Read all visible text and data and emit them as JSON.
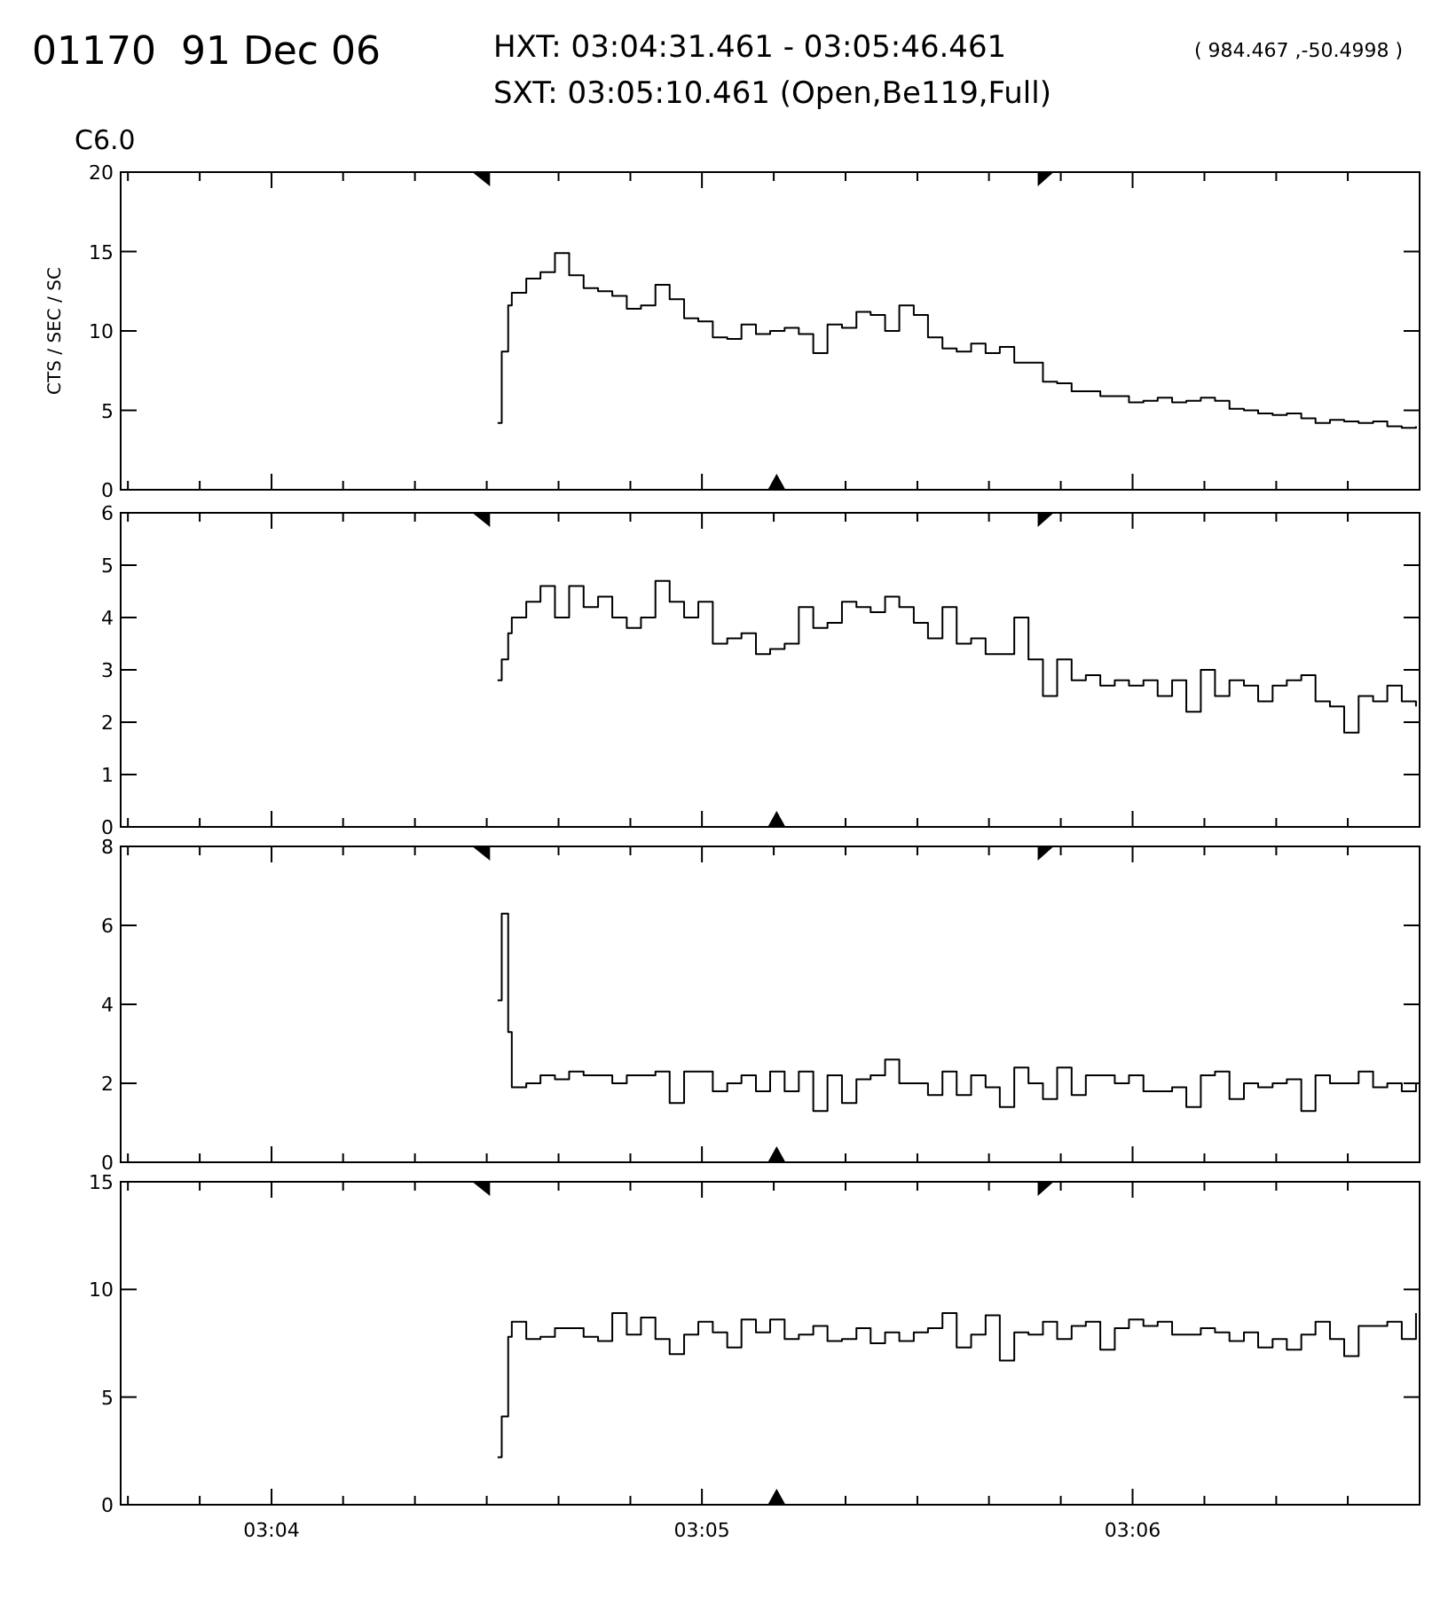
{
  "chart_data": [
    {
      "type": "step",
      "title": "01170  91 Dec 06",
      "annotations": [
        "HXT: 03:04:31.461 - 03:05:46.461",
        "( 984.467 ,-50.4998 )",
        "SXT: 03:05:10.461 (Open,Be119,Full)",
        "C6.0"
      ],
      "ylabel": "CTS / SEC / SC",
      "color": "#000000",
      "tick_labels": "y",
      "x": [
        3.07542,
        3.07558,
        3.07583,
        3.07597,
        3.07653,
        3.07708,
        3.07764,
        3.07819,
        3.07875,
        3.07931,
        3.07986,
        3.08042,
        3.08097,
        3.08153,
        3.08208,
        3.08264,
        3.08319,
        3.08375,
        3.08431,
        3.08486,
        3.08542,
        3.08597,
        3.08653,
        3.08708,
        3.08764,
        3.08819,
        3.08875,
        3.08931,
        3.08986,
        3.09042,
        3.09097,
        3.09153,
        3.09208,
        3.09264,
        3.09319,
        3.09375,
        3.09431,
        3.09486,
        3.09542,
        3.09597,
        3.09653,
        3.09708,
        3.09764,
        3.09819,
        3.09875,
        3.09931,
        3.09986,
        3.10042,
        3.10097,
        3.10153,
        3.10208,
        3.10264,
        3.10319,
        3.10375,
        3.10431,
        3.10486,
        3.10542,
        3.10597,
        3.10653,
        3.10708,
        3.10764,
        3.10819,
        3.10875,
        3.10931,
        3.10986,
        3.11042,
        3.11097
      ],
      "values": [
        4.2,
        8.7,
        11.6,
        12.4,
        13.3,
        13.7,
        14.9,
        13.5,
        12.7,
        12.5,
        12.2,
        11.4,
        11.6,
        12.9,
        12.0,
        10.8,
        10.6,
        9.6,
        9.5,
        10.4,
        9.8,
        10.0,
        10.2,
        9.8,
        8.6,
        10.4,
        10.2,
        11.2,
        11.0,
        10.0,
        11.6,
        11.0,
        9.6,
        8.9,
        8.7,
        9.2,
        8.6,
        9.0,
        8.0,
        8.0,
        6.8,
        6.7,
        6.2,
        6.2,
        5.9,
        5.9,
        5.5,
        5.6,
        5.8,
        5.5,
        5.6,
        5.8,
        5.6,
        5.1,
        5.0,
        4.8,
        4.7,
        4.8,
        4.5,
        4.2,
        4.4,
        4.3,
        4.2,
        4.3,
        4.0,
        3.9,
        4.0
      ],
      "xlim": [
        3.06083,
        3.11111
      ],
      "ylim": [
        0,
        20
      ],
      "yticks": [
        0,
        5,
        10,
        15,
        20
      ]
    },
    {
      "type": "step",
      "color": "#000000",
      "tick_labels": "y",
      "x": [
        3.07542,
        3.07558,
        3.07583,
        3.07597,
        3.07653,
        3.07708,
        3.07764,
        3.07819,
        3.07875,
        3.07931,
        3.07986,
        3.08042,
        3.08097,
        3.08153,
        3.08208,
        3.08264,
        3.08319,
        3.08375,
        3.08431,
        3.08486,
        3.08542,
        3.08597,
        3.08653,
        3.08708,
        3.08764,
        3.08819,
        3.08875,
        3.08931,
        3.08986,
        3.09042,
        3.09097,
        3.09153,
        3.09208,
        3.09264,
        3.09319,
        3.09375,
        3.09431,
        3.09486,
        3.09542,
        3.09597,
        3.09653,
        3.09708,
        3.09764,
        3.09819,
        3.09875,
        3.09931,
        3.09986,
        3.10042,
        3.10097,
        3.10153,
        3.10208,
        3.10264,
        3.10319,
        3.10375,
        3.10431,
        3.10486,
        3.10542,
        3.10597,
        3.10653,
        3.10708,
        3.10764,
        3.10819,
        3.10875,
        3.10931,
        3.10986,
        3.11042,
        3.11097
      ],
      "values": [
        2.8,
        3.2,
        3.7,
        4.0,
        4.3,
        4.6,
        4.0,
        4.6,
        4.2,
        4.4,
        4.0,
        3.8,
        4.0,
        4.7,
        4.3,
        4.0,
        4.3,
        3.5,
        3.6,
        3.7,
        3.3,
        3.4,
        3.5,
        4.2,
        3.8,
        3.9,
        4.3,
        4.2,
        4.1,
        4.4,
        4.2,
        3.9,
        3.6,
        4.2,
        3.5,
        3.6,
        3.3,
        3.3,
        4.0,
        3.2,
        2.5,
        3.2,
        2.8,
        2.9,
        2.7,
        2.8,
        2.7,
        2.8,
        2.5,
        2.8,
        2.2,
        3.0,
        2.5,
        2.8,
        2.7,
        2.4,
        2.7,
        2.8,
        2.9,
        2.4,
        2.3,
        1.8,
        2.5,
        2.4,
        2.7,
        2.4,
        2.3
      ],
      "xlim": [
        3.06083,
        3.11111
      ],
      "ylim": [
        0,
        6
      ],
      "yticks": [
        0,
        1,
        2,
        3,
        4,
        5,
        6
      ]
    },
    {
      "type": "step",
      "color": "#000000",
      "tick_labels": "y",
      "x": [
        3.07542,
        3.07558,
        3.07583,
        3.07597,
        3.07653,
        3.07708,
        3.07764,
        3.07819,
        3.07875,
        3.07931,
        3.07986,
        3.08042,
        3.08097,
        3.08153,
        3.08208,
        3.08264,
        3.08319,
        3.08375,
        3.08431,
        3.08486,
        3.08542,
        3.08597,
        3.08653,
        3.08708,
        3.08764,
        3.08819,
        3.08875,
        3.08931,
        3.08986,
        3.09042,
        3.09097,
        3.09153,
        3.09208,
        3.09264,
        3.09319,
        3.09375,
        3.09431,
        3.09486,
        3.09542,
        3.09597,
        3.09653,
        3.09708,
        3.09764,
        3.09819,
        3.09875,
        3.09931,
        3.09986,
        3.10042,
        3.10097,
        3.10153,
        3.10208,
        3.10264,
        3.10319,
        3.10375,
        3.10431,
        3.10486,
        3.10542,
        3.10597,
        3.10653,
        3.10708,
        3.10764,
        3.10819,
        3.10875,
        3.10931,
        3.10986,
        3.11042,
        3.11097
      ],
      "values": [
        4.1,
        6.3,
        3.3,
        1.9,
        2.0,
        2.2,
        2.1,
        2.3,
        2.2,
        2.2,
        2.0,
        2.2,
        2.2,
        2.3,
        1.5,
        2.3,
        2.3,
        1.8,
        2.0,
        2.2,
        1.8,
        2.3,
        1.8,
        2.3,
        1.3,
        2.2,
        1.5,
        2.1,
        2.2,
        2.6,
        2.0,
        2.0,
        1.7,
        2.3,
        1.7,
        2.2,
        1.9,
        1.4,
        2.4,
        2.0,
        1.6,
        2.4,
        1.7,
        2.2,
        2.2,
        2.0,
        2.2,
        1.8,
        1.8,
        1.9,
        1.4,
        2.2,
        2.3,
        1.6,
        2.0,
        1.9,
        2.0,
        2.1,
        1.3,
        2.2,
        2.0,
        2.0,
        2.3,
        1.9,
        2.0,
        1.8,
        2.0
      ],
      "xlim": [
        3.06083,
        3.11111
      ],
      "ylim": [
        0,
        8
      ],
      "yticks": [
        0,
        2,
        4,
        6,
        8
      ]
    },
    {
      "type": "step",
      "color": "#000000",
      "x": [
        3.07542,
        3.07558,
        3.07583,
        3.07597,
        3.07653,
        3.07708,
        3.07764,
        3.07819,
        3.07875,
        3.07931,
        3.07986,
        3.08042,
        3.08097,
        3.08153,
        3.08208,
        3.08264,
        3.08319,
        3.08375,
        3.08431,
        3.08486,
        3.08542,
        3.08597,
        3.08653,
        3.08708,
        3.08764,
        3.08819,
        3.08875,
        3.08931,
        3.08986,
        3.09042,
        3.09097,
        3.09153,
        3.09208,
        3.09264,
        3.09319,
        3.09375,
        3.09431,
        3.09486,
        3.09542,
        3.09597,
        3.09653,
        3.09708,
        3.09764,
        3.09819,
        3.09875,
        3.09931,
        3.09986,
        3.10042,
        3.10097,
        3.10153,
        3.10208,
        3.10264,
        3.10319,
        3.10375,
        3.10431,
        3.10486,
        3.10542,
        3.10597,
        3.10653,
        3.10708,
        3.10764,
        3.10819,
        3.10875,
        3.10931,
        3.10986,
        3.11042,
        3.11097
      ],
      "values": [
        2.2,
        4.1,
        7.8,
        8.5,
        7.7,
        7.8,
        8.2,
        8.2,
        7.8,
        7.6,
        8.9,
        7.9,
        8.7,
        7.7,
        7.0,
        7.9,
        8.5,
        8.0,
        7.3,
        8.6,
        8.0,
        8.6,
        7.7,
        7.9,
        8.3,
        7.6,
        7.7,
        8.2,
        7.5,
        8.0,
        7.6,
        8.0,
        8.2,
        8.9,
        7.3,
        7.9,
        8.8,
        6.7,
        8.0,
        7.9,
        8.5,
        7.7,
        8.3,
        8.5,
        7.2,
        8.2,
        8.6,
        8.3,
        8.5,
        7.9,
        7.9,
        8.2,
        8.0,
        7.6,
        8.0,
        7.3,
        7.7,
        7.2,
        7.9,
        8.5,
        7.7,
        6.9,
        8.3,
        8.3,
        8.5,
        7.7,
        8.9
      ],
      "xlim": [
        3.06083,
        3.11111
      ],
      "xticks": [
        {
          "value": 3.06111,
          "label": null
        },
        {
          "value": 3.06389,
          "label": null
        },
        {
          "value": 3.06667,
          "label": "03:04"
        },
        {
          "value": 3.06944,
          "label": null
        },
        {
          "value": 3.07222,
          "label": null
        },
        {
          "value": 3.075,
          "label": null
        },
        {
          "value": 3.07778,
          "label": null
        },
        {
          "value": 3.08056,
          "label": null
        },
        {
          "value": 3.08333,
          "label": "03:05"
        },
        {
          "value": 3.08611,
          "label": null
        },
        {
          "value": 3.08889,
          "label": null
        },
        {
          "value": 3.09167,
          "label": null
        },
        {
          "value": 3.09444,
          "label": null
        },
        {
          "value": 3.09722,
          "label": null
        },
        {
          "value": 3.1,
          "label": "03:06"
        },
        {
          "value": 3.10278,
          "label": null
        },
        {
          "value": 3.10556,
          "label": null
        },
        {
          "value": 3.10833,
          "label": null
        }
      ],
      "ylim": [
        0,
        15
      ],
      "yticks": [
        0,
        5,
        10,
        15
      ]
    }
  ]
}
